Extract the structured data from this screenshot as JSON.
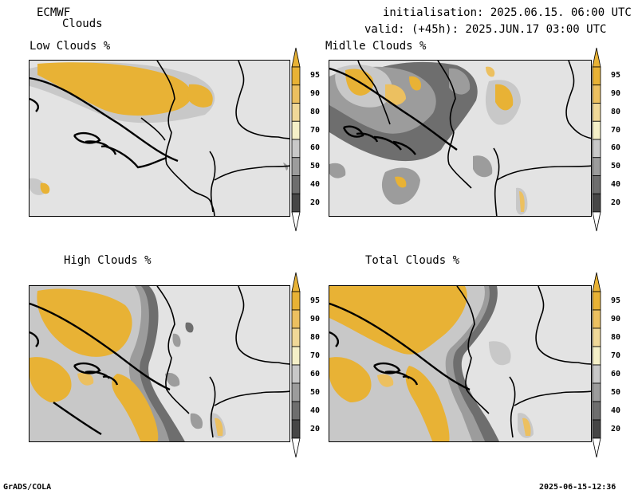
{
  "header": {
    "model": "ECMWF",
    "product": "Clouds",
    "init_line": "initialisation: 2025.06.15. 06:00 UTC",
    "valid_line": "valid: (+45h): 2025.JUN.17 03:00 UTC"
  },
  "panels": {
    "low": {
      "title": "Low Clouds %"
    },
    "middle": {
      "title": "Midlle Clouds %"
    },
    "high": {
      "title": "High Clouds %"
    },
    "total": {
      "title": "Total Clouds %"
    }
  },
  "colorbar": {
    "levels": [
      "95",
      "90",
      "80",
      "70",
      "60",
      "50",
      "40",
      "20"
    ],
    "colors": [
      "#e8b235",
      "#ecc060",
      "#f0d898",
      "#f5f0c8",
      "#c8c8c8",
      "#9c9c9c",
      "#6e6e6e",
      "#464646"
    ],
    "end_top": "#e8b235",
    "end_bottom": "#ffffff"
  },
  "footer": {
    "left": "GrADS/COLA",
    "right": "2025-06-15-12:36"
  }
}
